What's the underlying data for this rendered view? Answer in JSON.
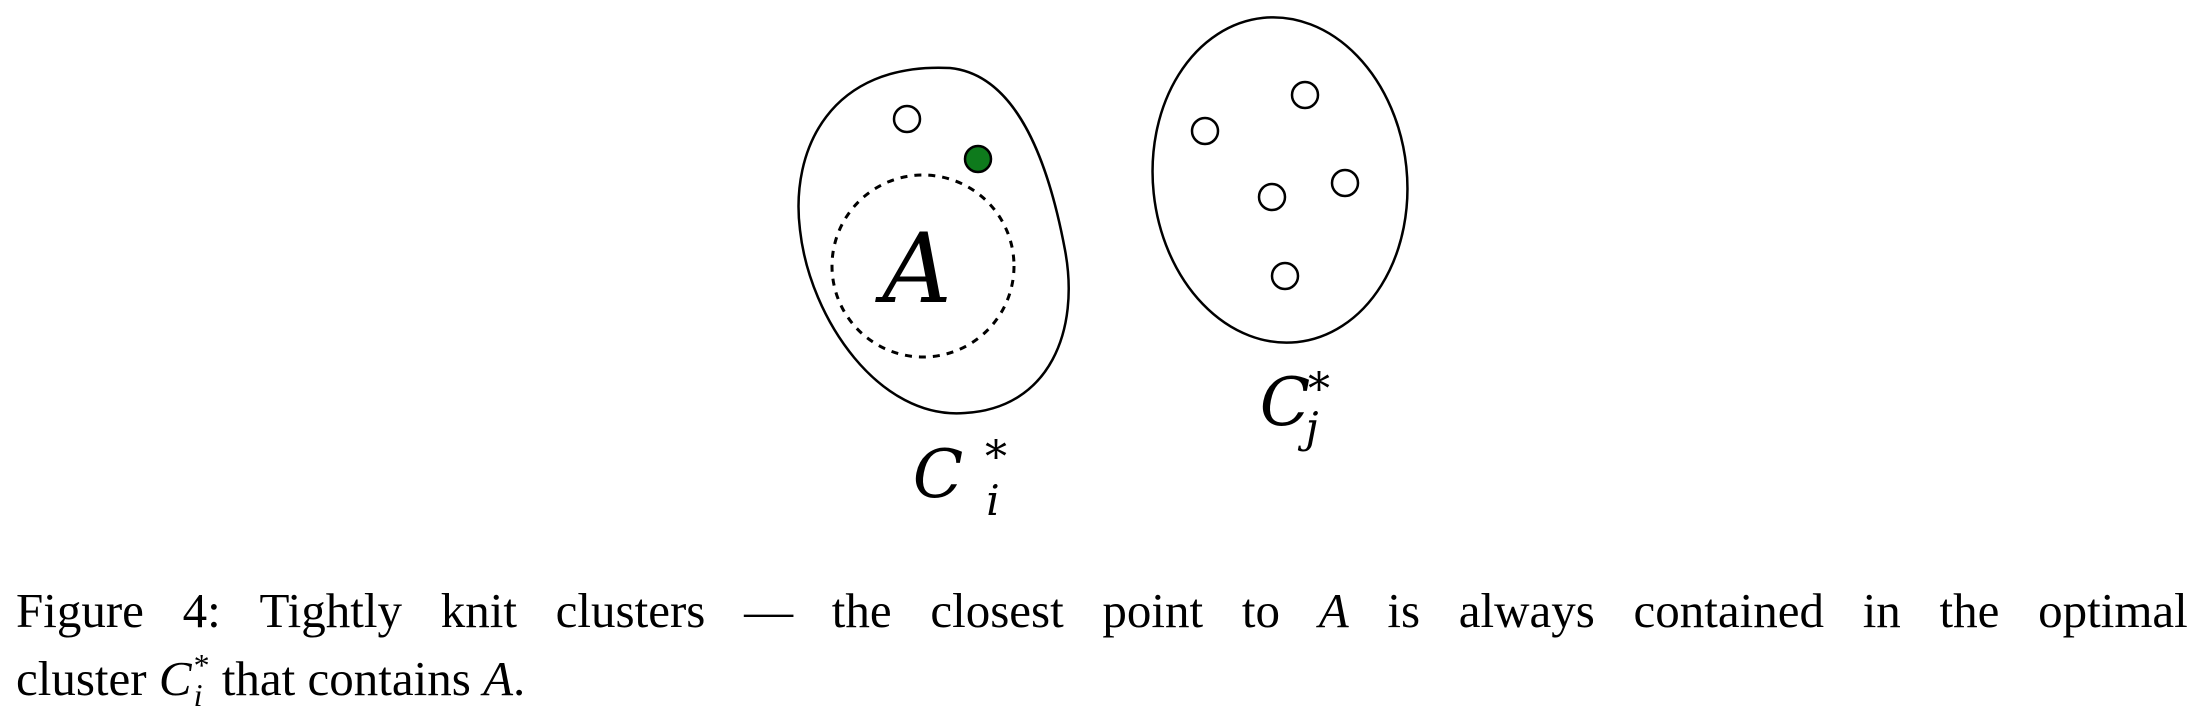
{
  "figure": {
    "cluster_i": {
      "inner_label": "A",
      "label": {
        "base": "C",
        "sup": "*",
        "sub": "i"
      },
      "open_points": 1,
      "highlighted_points": 1,
      "highlight_color": "#0e7a1c"
    },
    "cluster_j": {
      "label": {
        "base": "C",
        "sup": "*",
        "sub": "j"
      },
      "open_points": 5
    }
  },
  "caption": {
    "line1_words": [
      "Figure",
      "4:",
      "Tightly",
      "knit",
      "clusters",
      "—",
      "the",
      "closest",
      "point",
      "to",
      "A",
      "is",
      "always",
      "contained",
      "in",
      "the",
      "optimal"
    ],
    "line2_prefix": "cluster",
    "line2_symbol": {
      "base": "C",
      "sup": "*",
      "sub": "i"
    },
    "line2_middle": "that contains",
    "line2_symbol2": "A",
    "line2_end": "."
  }
}
